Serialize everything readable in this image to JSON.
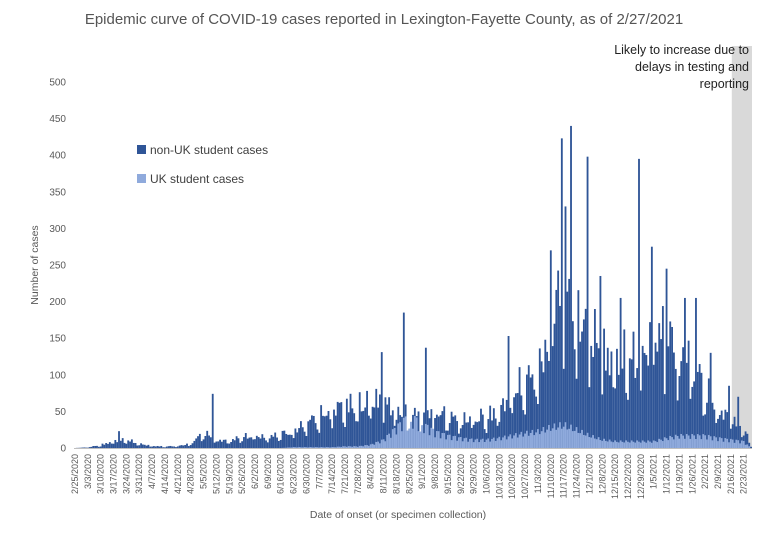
{
  "chart_data": {
    "type": "bar",
    "stacked": true,
    "title": "Epidemic curve of COVID-19 cases reported in Lexington-Fayette County, as of 2/27/2021",
    "xlabel": "Date of onset (or specimen collection)",
    "ylabel": "Number of cases",
    "ylim": [
      0,
      500
    ],
    "yticks": [
      0,
      50,
      100,
      150,
      200,
      250,
      300,
      350,
      400,
      450,
      500
    ],
    "grid": false,
    "legend_position": "upper-left",
    "x_range": [
      "2/25/2020",
      "2/27/2021"
    ],
    "x_tick_labels": [
      "2/25/2020",
      "3/3/2020",
      "3/10/2020",
      "3/17/2020",
      "3/24/2020",
      "3/31/2020",
      "4/7/2020",
      "4/14/2020",
      "4/21/2020",
      "4/28/2020",
      "5/5/2020",
      "5/12/2020",
      "5/19/2020",
      "5/26/2020",
      "6/2/2020",
      "6/9/2020",
      "6/16/2020",
      "6/23/2020",
      "6/30/2020",
      "7/7/2020",
      "7/14/2020",
      "7/21/2020",
      "7/28/2020",
      "8/4/2020",
      "8/11/2020",
      "8/18/2020",
      "8/25/2020",
      "9/1/2020",
      "9/8/2020",
      "9/15/2020",
      "9/22/2020",
      "9/29/2020",
      "10/6/2020",
      "10/13/2020",
      "10/20/2020",
      "10/27/2020",
      "11/3/2020",
      "11/10/2020",
      "11/17/2020",
      "11/24/2020",
      "12/1/2020",
      "12/8/2020",
      "12/15/2020",
      "12/22/2020",
      "12/29/2020",
      "1/5/2021",
      "1/12/2021",
      "1/19/2021",
      "1/26/2021",
      "2/2/2021",
      "2/9/2021",
      "2/16/2021",
      "2/23/2021"
    ],
    "series": [
      {
        "name": "non-UK student cases",
        "color": "#2f5597",
        "points": [
          [
            "2/25/2020",
            0
          ],
          [
            "3/3/2020",
            1
          ],
          [
            "3/10/2020",
            4
          ],
          [
            "3/17/2020",
            10
          ],
          [
            "3/24/2020",
            12
          ],
          [
            "3/31/2020",
            6
          ],
          [
            "4/7/2020",
            3
          ],
          [
            "4/14/2020",
            2
          ],
          [
            "4/21/2020",
            3
          ],
          [
            "4/28/2020",
            6
          ],
          [
            "5/5/2020",
            22
          ],
          [
            "5/12/2020",
            12
          ],
          [
            "5/19/2020",
            10
          ],
          [
            "5/26/2020",
            16
          ],
          [
            "6/2/2020",
            18
          ],
          [
            "6/9/2020",
            15
          ],
          [
            "6/16/2020",
            20
          ],
          [
            "6/23/2020",
            25
          ],
          [
            "6/30/2020",
            36
          ],
          [
            "7/7/2020",
            46
          ],
          [
            "7/14/2020",
            55
          ],
          [
            "7/21/2020",
            62
          ],
          [
            "7/28/2020",
            62
          ],
          [
            "8/4/2020",
            70
          ],
          [
            "8/11/2020",
            65
          ],
          [
            "8/18/2020",
            55
          ],
          [
            "8/25/2020",
            45
          ],
          [
            "9/1/2020",
            50
          ],
          [
            "9/8/2020",
            55
          ],
          [
            "9/15/2020",
            45
          ],
          [
            "9/22/2020",
            40
          ],
          [
            "9/29/2020",
            45
          ],
          [
            "10/6/2020",
            45
          ],
          [
            "10/13/2020",
            55
          ],
          [
            "10/20/2020",
            80
          ],
          [
            "10/27/2020",
            95
          ],
          [
            "11/3/2020",
            110
          ],
          [
            "11/10/2020",
            170
          ],
          [
            "11/17/2020",
            240
          ],
          [
            "11/24/2020",
            190
          ],
          [
            "12/1/2020",
            170
          ],
          [
            "12/8/2020",
            135
          ],
          [
            "12/15/2020",
            130
          ],
          [
            "12/22/2020",
            135
          ],
          [
            "12/29/2020",
            120
          ],
          [
            "1/5/2021",
            165
          ],
          [
            "1/12/2021",
            160
          ],
          [
            "1/19/2021",
            135
          ],
          [
            "1/26/2021",
            125
          ],
          [
            "2/2/2021",
            85
          ],
          [
            "2/9/2021",
            55
          ],
          [
            "2/16/2021",
            45
          ],
          [
            "2/23/2021",
            30
          ],
          [
            "2/27/2021",
            2
          ]
        ]
      },
      {
        "name": "UK student cases",
        "color": "#8faadc",
        "points": [
          [
            "2/25/2020",
            0
          ],
          [
            "3/3/2020",
            0
          ],
          [
            "3/10/2020",
            0
          ],
          [
            "3/17/2020",
            0
          ],
          [
            "3/24/2020",
            0
          ],
          [
            "3/31/2020",
            0
          ],
          [
            "4/7/2020",
            0
          ],
          [
            "4/14/2020",
            0
          ],
          [
            "4/21/2020",
            0
          ],
          [
            "4/28/2020",
            0
          ],
          [
            "5/5/2020",
            0
          ],
          [
            "5/12/2020",
            0
          ],
          [
            "5/19/2020",
            0
          ],
          [
            "5/26/2020",
            0
          ],
          [
            "6/2/2020",
            0
          ],
          [
            "6/9/2020",
            0
          ],
          [
            "6/16/2020",
            0
          ],
          [
            "6/23/2020",
            1
          ],
          [
            "6/30/2020",
            1
          ],
          [
            "7/7/2020",
            1
          ],
          [
            "7/14/2020",
            1
          ],
          [
            "7/21/2020",
            2
          ],
          [
            "7/28/2020",
            2
          ],
          [
            "8/4/2020",
            4
          ],
          [
            "8/11/2020",
            10
          ],
          [
            "8/18/2020",
            25
          ],
          [
            "8/25/2020",
            40
          ],
          [
            "9/1/2020",
            30
          ],
          [
            "9/8/2020",
            20
          ],
          [
            "9/15/2020",
            15
          ],
          [
            "9/22/2020",
            12
          ],
          [
            "9/29/2020",
            10
          ],
          [
            "10/6/2020",
            10
          ],
          [
            "10/13/2020",
            12
          ],
          [
            "10/20/2020",
            15
          ],
          [
            "10/27/2020",
            18
          ],
          [
            "11/3/2020",
            20
          ],
          [
            "11/10/2020",
            25
          ],
          [
            "11/17/2020",
            28
          ],
          [
            "11/24/2020",
            22
          ],
          [
            "12/1/2020",
            15
          ],
          [
            "12/8/2020",
            10
          ],
          [
            "12/15/2020",
            8
          ],
          [
            "12/22/2020",
            8
          ],
          [
            "12/29/2020",
            8
          ],
          [
            "1/5/2021",
            8
          ],
          [
            "1/12/2021",
            12
          ],
          [
            "1/19/2021",
            15
          ],
          [
            "1/26/2021",
            15
          ],
          [
            "2/2/2021",
            15
          ],
          [
            "2/9/2021",
            12
          ],
          [
            "2/16/2021",
            10
          ],
          [
            "2/23/2021",
            8
          ],
          [
            "2/27/2021",
            0
          ]
        ]
      }
    ],
    "spikes": [
      [
        "3/20/2020",
        23
      ],
      [
        "5/10/2020",
        74
      ],
      [
        "8/10/2020",
        131
      ],
      [
        "8/22/2020",
        185
      ],
      [
        "9/3/2020",
        137
      ],
      [
        "10/18/2020",
        153
      ],
      [
        "11/10/2020",
        270
      ],
      [
        "11/16/2020",
        423
      ],
      [
        "11/18/2020",
        330
      ],
      [
        "11/21/2020",
        440
      ],
      [
        "11/30/2020",
        398
      ],
      [
        "12/7/2020",
        235
      ],
      [
        "12/18/2020",
        205
      ],
      [
        "12/28/2020",
        395
      ],
      [
        "1/4/2021",
        275
      ],
      [
        "1/12/2021",
        245
      ],
      [
        "1/22/2021",
        205
      ],
      [
        "1/28/2021",
        205
      ],
      [
        "2/5/2021",
        130
      ],
      [
        "2/15/2021",
        85
      ],
      [
        "2/20/2021",
        70
      ]
    ],
    "shaded_region": {
      "from": "2/17/2021",
      "to": "2/27/2021",
      "color": "#d9d9d9",
      "label_lines": [
        "Likely to increase due to",
        "delays in testing and",
        "reporting"
      ]
    }
  }
}
